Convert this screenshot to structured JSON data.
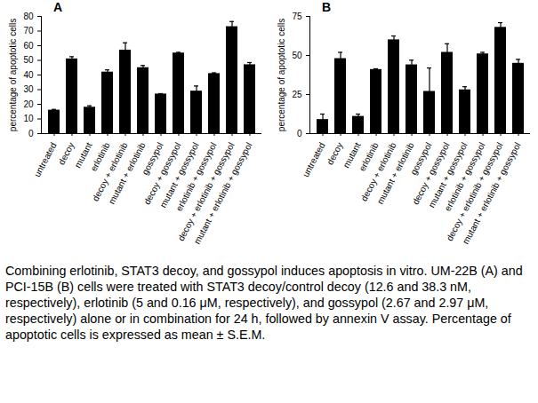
{
  "chart_data": [
    {
      "type": "bar",
      "title": "A",
      "y_label": "percentage of apoptotic cells",
      "categories": [
        "untreated",
        "decoy",
        "mutant",
        "erlotinib",
        "decoy + erlotinib",
        "mutant + erlotinib",
        "gossypol",
        "decoy + gossypol",
        "mutant + gossypol",
        "erlotinib + gossypol",
        "decoy + erlotinib + gossypol",
        "mutant + erlotinib + gossypol"
      ],
      "values": [
        16,
        51,
        18,
        42,
        57,
        45,
        27,
        55,
        29,
        41,
        73,
        47
      ],
      "errors": [
        0.5,
        1.5,
        1,
        1.5,
        5,
        1.5,
        0.3,
        0.5,
        3.5,
        0.5,
        3.5,
        1.5
      ],
      "color": "#000000",
      "ylim": [
        0,
        80
      ],
      "yticks": [
        0,
        10,
        20,
        30,
        40,
        50,
        60,
        70,
        80
      ],
      "grid": false
    },
    {
      "type": "bar",
      "title": "B",
      "y_label": "percentage of apoptotic cells",
      "categories": [
        "untreated",
        "decoy",
        "mutant",
        "erlotinib",
        "decoy + erlotinib",
        "mutant + erlotinib",
        "gossypol",
        "decoy + gossypol",
        "mutant + gossypol",
        "erlotinib + gossypol",
        "decoy + erlotinib + gossypol",
        "mutant + erlotinib + gossypol"
      ],
      "values": [
        9,
        48,
        11,
        41,
        60,
        44,
        27,
        52,
        28,
        51,
        68,
        45
      ],
      "errors": [
        3.5,
        4,
        1.5,
        0.5,
        2.5,
        3,
        15,
        5.5,
        2,
        1,
        3,
        2.5
      ],
      "color": "#000000",
      "ylim": [
        0,
        75
      ],
      "yticks": [
        0,
        25,
        50,
        75
      ],
      "grid": false
    }
  ],
  "caption": "Combining erlotinib, STAT3 decoy, and gossypol induces apoptosis in vitro. UM-22B (A) and PCI-15B (B) cells were treated with STAT3 decoy/control decoy (12.6 and 38.3 nM, respectively), erlotinib (5 and 0.16 μM, respectively), and gossypol (2.67 and 2.97 μM, respectively) alone or in combination for 24 h, followed by annexin V assay. Percentage of apoptotic cells is expressed as mean ± S.E.M."
}
